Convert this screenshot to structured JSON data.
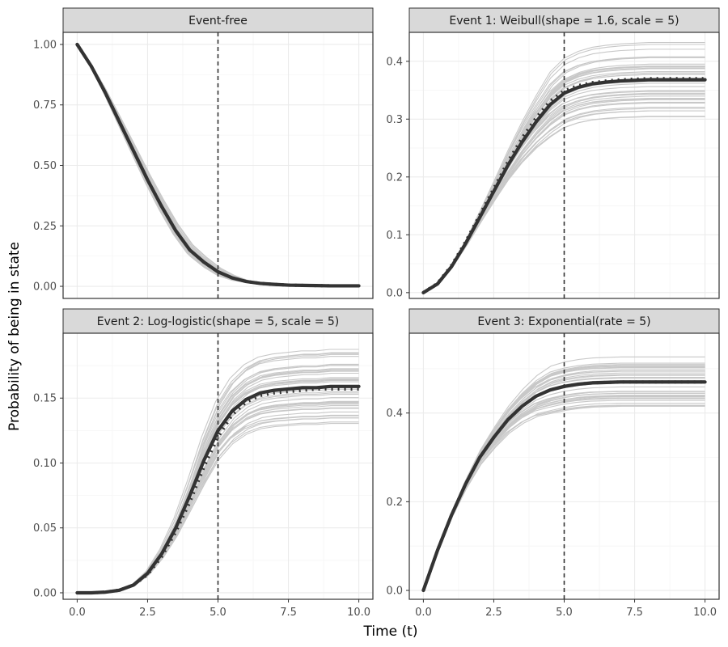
{
  "figure": {
    "xlabel": "Time (t)",
    "ylabel": "Probability of being in state",
    "reference_line_x": 5.0
  },
  "colors": {
    "mean_line": "#333333",
    "simulation_lines": "#c8c8c8",
    "grid_major": "#ebebeb",
    "grid_minor": "#f5f5f5",
    "strip_fill": "#d9d9d9",
    "panel_border": "#333333",
    "reference_line": "#333333"
  },
  "chart_data": [
    {
      "type": "line",
      "title": "Event-free",
      "xlim": [
        -0.5,
        10.5
      ],
      "ylim": [
        -0.05,
        1.05
      ],
      "x_ticks": [
        0,
        2.5,
        5,
        7.5,
        10
      ],
      "x_tick_labels": [
        "0.0",
        "2.5",
        "5.0",
        "7.5",
        "10.0"
      ],
      "y_ticks": [
        0,
        0.25,
        0.5,
        0.75,
        1.0
      ],
      "y_tick_labels": [
        "0.00",
        "0.25",
        "0.50",
        "0.75",
        "1.00"
      ],
      "show_x_axis_labels": false,
      "x": [
        0,
        0.5,
        1,
        1.5,
        2,
        2.5,
        3,
        3.5,
        4,
        4.5,
        5,
        5.5,
        6,
        6.5,
        7,
        7.5,
        8,
        8.5,
        9,
        9.5,
        10
      ],
      "series": [
        {
          "name": "mean",
          "values": [
            1.0,
            0.91,
            0.8,
            0.68,
            0.56,
            0.44,
            0.33,
            0.23,
            0.15,
            0.1,
            0.06,
            0.035,
            0.02,
            0.012,
            0.008,
            0.005,
            0.004,
            0.003,
            0.002,
            0.002,
            0.002
          ]
        },
        {
          "name": "expected",
          "values": [
            1.0,
            0.91,
            0.8,
            0.68,
            0.56,
            0.44,
            0.33,
            0.23,
            0.15,
            0.1,
            0.06,
            0.035,
            0.02,
            0.012,
            0.008,
            0.005,
            0.004,
            0.003,
            0.002,
            0.002,
            0.002
          ]
        }
      ],
      "simulation_band": {
        "count": 40,
        "spread": 0.03,
        "profile": "mid"
      }
    },
    {
      "type": "line",
      "title": "Event 1: Weibull(shape = 1.6, scale = 5)",
      "xlim": [
        -0.5,
        10.5
      ],
      "ylim": [
        -0.01,
        0.45
      ],
      "x_ticks": [
        0,
        2.5,
        5,
        7.5,
        10
      ],
      "x_tick_labels": [
        "0.0",
        "2.5",
        "5.0",
        "7.5",
        "10.0"
      ],
      "y_ticks": [
        0,
        0.1,
        0.2,
        0.3,
        0.4
      ],
      "y_tick_labels": [
        "0.0",
        "0.1",
        "0.2",
        "0.3",
        "0.4"
      ],
      "show_x_axis_labels": false,
      "x": [
        0,
        0.5,
        1,
        1.5,
        2,
        2.5,
        3,
        3.5,
        4,
        4.5,
        5,
        5.5,
        6,
        6.5,
        7,
        7.5,
        8,
        8.5,
        9,
        9.5,
        10
      ],
      "series": [
        {
          "name": "mean",
          "values": [
            0.0,
            0.015,
            0.045,
            0.085,
            0.13,
            0.175,
            0.22,
            0.26,
            0.295,
            0.325,
            0.345,
            0.355,
            0.361,
            0.364,
            0.366,
            0.367,
            0.368,
            0.368,
            0.368,
            0.368,
            0.368
          ]
        },
        {
          "name": "expected",
          "values": [
            0.0,
            0.016,
            0.047,
            0.088,
            0.134,
            0.18,
            0.226,
            0.267,
            0.302,
            0.331,
            0.349,
            0.358,
            0.363,
            0.366,
            0.368,
            0.369,
            0.37,
            0.37,
            0.37,
            0.37,
            0.37
          ]
        }
      ],
      "simulation_band": {
        "count": 40,
        "spread": 0.065,
        "profile": "late"
      }
    },
    {
      "type": "line",
      "title": "Event 2: Log-logistic(shape = 5, scale = 5)",
      "xlim": [
        -0.5,
        10.5
      ],
      "ylim": [
        -0.005,
        0.2
      ],
      "x_ticks": [
        0,
        2.5,
        5,
        7.5,
        10
      ],
      "x_tick_labels": [
        "0.0",
        "2.5",
        "5.0",
        "7.5",
        "10.0"
      ],
      "y_ticks": [
        0,
        0.05,
        0.1,
        0.15
      ],
      "y_tick_labels": [
        "0.00",
        "0.05",
        "0.10",
        "0.15"
      ],
      "show_x_axis_labels": true,
      "x": [
        0,
        0.5,
        1,
        1.5,
        2,
        2.5,
        3,
        3.5,
        4,
        4.5,
        5,
        5.5,
        6,
        6.5,
        7,
        7.5,
        8,
        8.5,
        9,
        9.5,
        10
      ],
      "series": [
        {
          "name": "mean",
          "values": [
            0.0,
            0.0,
            0.0005,
            0.002,
            0.006,
            0.015,
            0.03,
            0.05,
            0.075,
            0.102,
            0.125,
            0.14,
            0.149,
            0.154,
            0.156,
            0.157,
            0.158,
            0.158,
            0.159,
            0.159,
            0.159
          ]
        },
        {
          "name": "expected",
          "values": [
            0.0,
            0.0,
            0.0005,
            0.002,
            0.006,
            0.014,
            0.028,
            0.047,
            0.07,
            0.097,
            0.12,
            0.137,
            0.147,
            0.152,
            0.154,
            0.155,
            0.156,
            0.157,
            0.157,
            0.157,
            0.157
          ]
        }
      ],
      "simulation_band": {
        "count": 40,
        "spread": 0.03,
        "profile": "late"
      }
    },
    {
      "type": "line",
      "title": "Event 3: Exponential(rate = 5)",
      "xlim": [
        -0.5,
        10.5
      ],
      "ylim": [
        -0.02,
        0.58
      ],
      "x_ticks": [
        0,
        2.5,
        5,
        7.5,
        10
      ],
      "x_tick_labels": [
        "0.0",
        "2.5",
        "5.0",
        "7.5",
        "10.0"
      ],
      "y_ticks": [
        0,
        0.2,
        0.4
      ],
      "y_tick_labels": [
        "0.0",
        "0.2",
        "0.4"
      ],
      "show_x_axis_labels": true,
      "x": [
        0,
        0.5,
        1,
        1.5,
        2,
        2.5,
        3,
        3.5,
        4,
        4.5,
        5,
        5.5,
        6,
        6.5,
        7,
        7.5,
        8,
        8.5,
        9,
        9.5,
        10
      ],
      "series": [
        {
          "name": "mean",
          "values": [
            0.0,
            0.09,
            0.17,
            0.24,
            0.3,
            0.345,
            0.385,
            0.415,
            0.438,
            0.452,
            0.46,
            0.465,
            0.468,
            0.469,
            0.47,
            0.47,
            0.47,
            0.47,
            0.47,
            0.47,
            0.47
          ]
        },
        {
          "name": "expected",
          "values": [
            0.0,
            0.09,
            0.17,
            0.24,
            0.3,
            0.345,
            0.385,
            0.415,
            0.438,
            0.452,
            0.46,
            0.465,
            0.468,
            0.469,
            0.47,
            0.47,
            0.47,
            0.47,
            0.47,
            0.47,
            0.47
          ]
        }
      ],
      "simulation_band": {
        "count": 40,
        "spread": 0.06,
        "profile": "late"
      }
    }
  ]
}
